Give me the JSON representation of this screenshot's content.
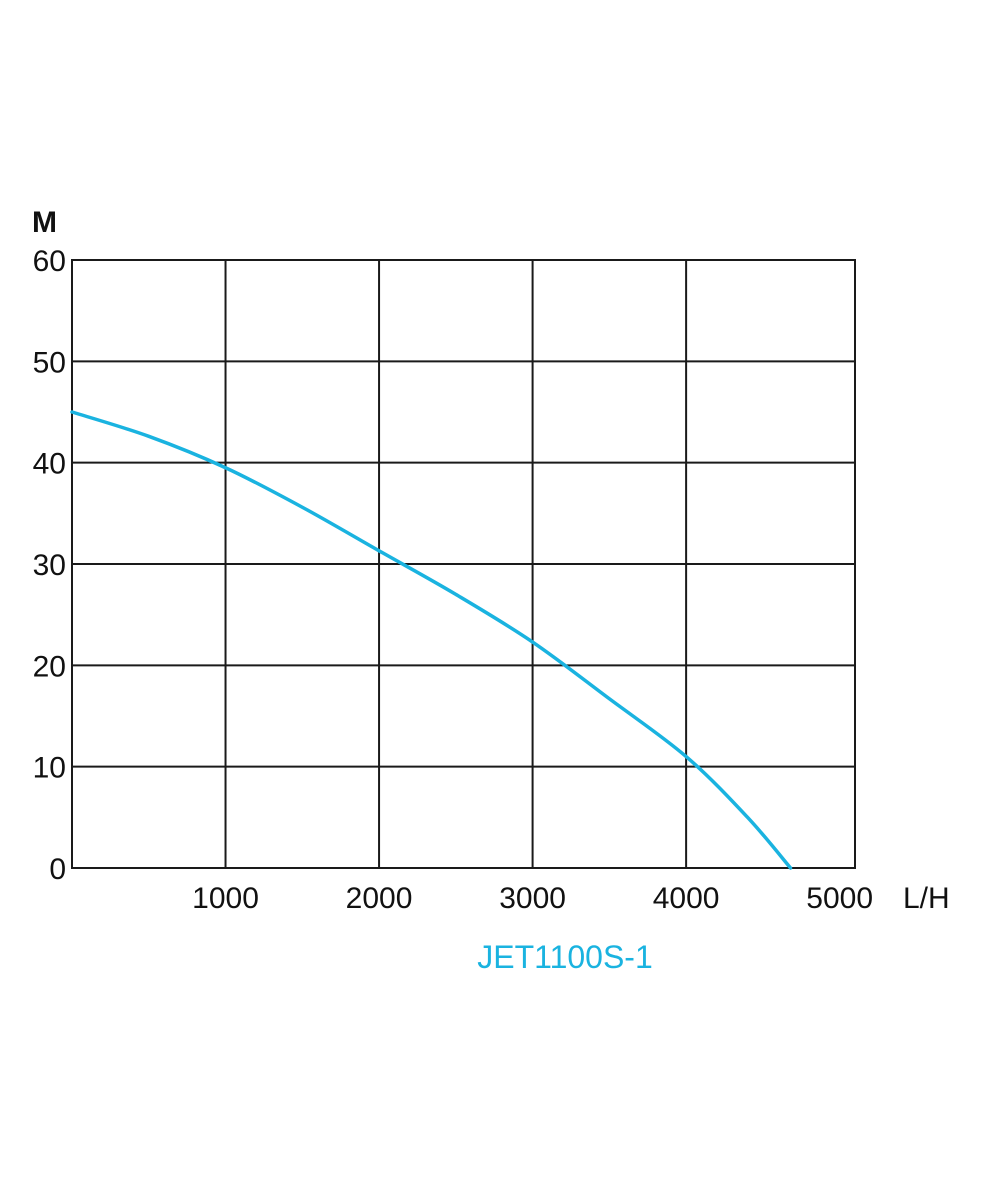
{
  "chart_data": {
    "type": "line",
    "xlabel": "L/H",
    "ylabel": "M",
    "xlim": [
      0,
      5100
    ],
    "ylim": [
      0,
      60
    ],
    "x_ticks": [
      1000,
      2000,
      3000,
      4000,
      5000
    ],
    "x_tick_labels": [
      "1000",
      "2000",
      "3000",
      "4000",
      "5000"
    ],
    "y_ticks": [
      0,
      10,
      20,
      30,
      40,
      50,
      60
    ],
    "y_tick_labels": [
      "0",
      "10",
      "20",
      "30",
      "40",
      "50",
      "60"
    ],
    "x_gridlines": [
      1000,
      2000,
      3000,
      4000
    ],
    "grid": true,
    "series": [
      {
        "name": "JET1100S-1",
        "color": "#1ab3e0",
        "x": [
          0,
          500,
          1000,
          1500,
          2000,
          2500,
          3000,
          3500,
          4000,
          4400,
          4680
        ],
        "y": [
          45,
          42.6,
          39.5,
          35.6,
          31.3,
          27.0,
          22.3,
          16.7,
          11.0,
          5.0,
          0
        ]
      }
    ]
  }
}
